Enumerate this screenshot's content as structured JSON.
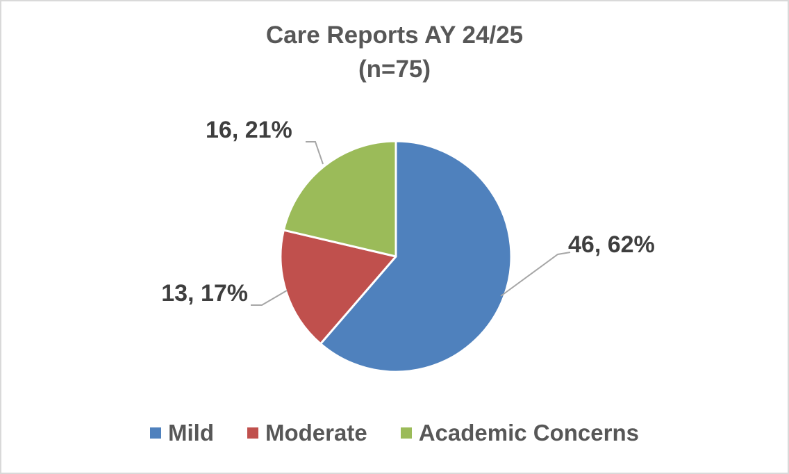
{
  "window": {
    "background": "#ffffff",
    "frame_color": "#d9d9d9"
  },
  "title": {
    "line1": "Care Reports AY 24/25",
    "line2": "(n=75)",
    "color": "#575757"
  },
  "chart_data": {
    "type": "pie",
    "title": "Care Reports AY 24/25 (n=75)",
    "n_total": 75,
    "categories": [
      "Mild",
      "Moderate",
      "Academic Concerns"
    ],
    "values": [
      46,
      13,
      16
    ],
    "percents": [
      62,
      17,
      21
    ],
    "colors": [
      "#4F81BD",
      "#C0504D",
      "#9BBB59"
    ],
    "data_labels": [
      "46, 62%",
      "13, 17%",
      "16, 21%"
    ],
    "start_angle_deg": 0,
    "direction": "clockwise",
    "slice_border_color": "#ffffff",
    "leader_line_color": "#a6a6a6",
    "data_label_color": "#3e3e3e",
    "legend_position": "bottom"
  },
  "legend": {
    "items": [
      {
        "label": "Mild"
      },
      {
        "label": "Moderate"
      },
      {
        "label": "Academic Concerns"
      }
    ],
    "text_color": "#575757"
  }
}
